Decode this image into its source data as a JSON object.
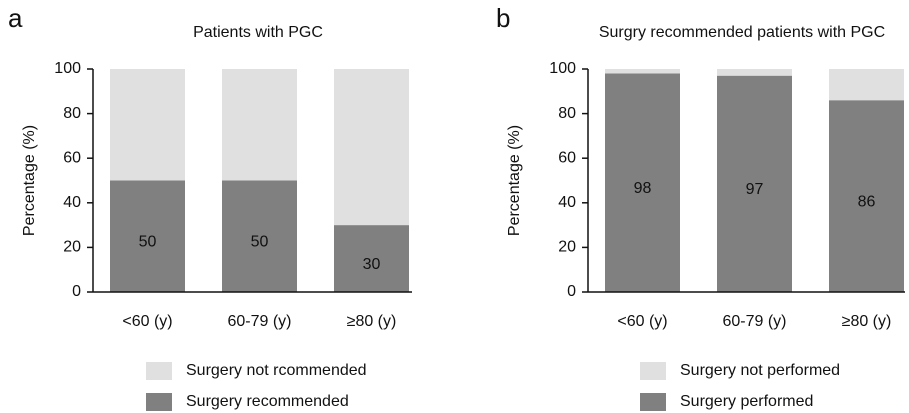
{
  "chart_data": [
    {
      "type": "stacked_bar",
      "panel": "a",
      "title": "Patients with PGC",
      "y_label": "Percentage (%)",
      "categories": [
        "<60 (y)",
        "60-79 (y)",
        "≥80 (y)"
      ],
      "series": [
        {
          "name": "Surgery recommended",
          "color": "#808080",
          "values": [
            50,
            50,
            30
          ]
        },
        {
          "name": "Surgery not rcommended",
          "color": "#e0e0e0",
          "values": [
            50,
            50,
            70
          ]
        }
      ],
      "ylim": [
        0,
        100
      ],
      "yticks": [
        0,
        20,
        40,
        60,
        80,
        100
      ],
      "data_labels_series": 0
    },
    {
      "type": "stacked_bar",
      "panel": "b",
      "title": "Surgry recommended patients with PGC",
      "y_label": "Percentage (%)",
      "categories": [
        "<60 (y)",
        "60-79 (y)",
        "≥80 (y)"
      ],
      "series": [
        {
          "name": "Surgery performed",
          "color": "#808080",
          "values": [
            98,
            97,
            86
          ]
        },
        {
          "name": "Surgery not performed",
          "color": "#e0e0e0",
          "values": [
            2,
            3,
            14
          ]
        }
      ],
      "ylim": [
        0,
        100
      ],
      "yticks": [
        0,
        20,
        40,
        60,
        80,
        100
      ],
      "data_labels_series": 0
    }
  ]
}
